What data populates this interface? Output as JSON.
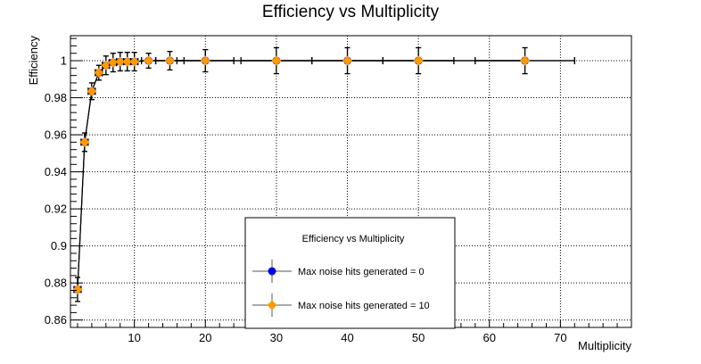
{
  "chart_data": {
    "type": "scatter",
    "title": "Efficiency vs Multiplicity",
    "xlabel": "Multiplicity",
    "ylabel": "Efficiency",
    "xlim": [
      1,
      80
    ],
    "ylim": [
      0.856,
      1.0135
    ],
    "grid": true,
    "x_ticks": [
      10,
      20,
      30,
      40,
      50,
      60,
      70
    ],
    "y_ticks": [
      0.86,
      0.88,
      0.9,
      0.92,
      0.94,
      0.96,
      0.98,
      1
    ],
    "y_tick_labels": [
      "0.86",
      "0.88",
      "0.9",
      "0.92",
      "0.94",
      "0.96",
      "0.98",
      "1"
    ],
    "legend": {
      "title": "Efficiency vs Multiplicity",
      "placement": "bottom-center",
      "entries": [
        {
          "label": "Max noise hits generated = 0",
          "color": "#0000ee"
        },
        {
          "label": "Max noise hits generated = 10",
          "color": "#ff9900"
        }
      ]
    },
    "series": [
      {
        "name": "Max noise hits generated = 0",
        "color": "#0000ee",
        "marker": "circle",
        "x": [
          2,
          3,
          4,
          5,
          6,
          7,
          8,
          9,
          10,
          12,
          15,
          20,
          30,
          40,
          50,
          65
        ],
        "y": [
          0.8765,
          0.956,
          0.9835,
          0.9935,
          0.9975,
          0.999,
          0.9995,
          0.9995,
          0.9995,
          1.0,
          1.0,
          1.0,
          1.0,
          1.0,
          1.0,
          1.0
        ],
        "yerr": [
          0.0065,
          0.005,
          0.0045,
          0.004,
          0.005,
          0.005,
          0.005,
          0.005,
          0.005,
          0.004,
          0.005,
          0.006,
          0.007,
          0.007,
          0.007,
          0.007
        ],
        "xerr": [
          0.5,
          0.5,
          0.5,
          0.5,
          0.5,
          0.5,
          0.5,
          0.5,
          0.5,
          1,
          2,
          4,
          5,
          5,
          5,
          7
        ]
      },
      {
        "name": "Max noise hits generated = 10",
        "color": "#ff9900",
        "marker": "diamond",
        "x": [
          2,
          3,
          4,
          5,
          6,
          7,
          8,
          9,
          10,
          12,
          15,
          20,
          30,
          40,
          50,
          65
        ],
        "y": [
          0.8765,
          0.956,
          0.9835,
          0.9935,
          0.9975,
          0.999,
          0.9995,
          0.9995,
          0.9995,
          1.0,
          1.0,
          1.0,
          1.0,
          1.0,
          1.0,
          1.0
        ],
        "yerr": [
          0.0065,
          0.005,
          0.0045,
          0.004,
          0.005,
          0.005,
          0.005,
          0.005,
          0.005,
          0.004,
          0.005,
          0.006,
          0.007,
          0.007,
          0.007,
          0.007
        ],
        "xerr": [
          0.5,
          0.5,
          0.5,
          0.5,
          0.5,
          0.5,
          0.5,
          0.5,
          0.5,
          1,
          2,
          4,
          5,
          5,
          5,
          7
        ]
      }
    ]
  }
}
